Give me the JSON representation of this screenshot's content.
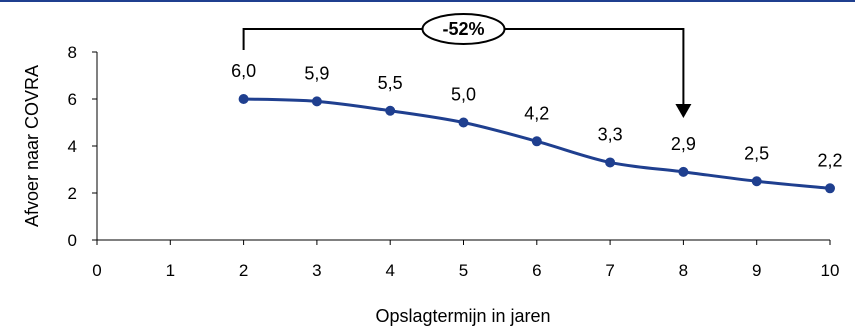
{
  "chart_data": {
    "type": "line",
    "title": "",
    "xlabel": "Opslagtermijn in jaren",
    "ylabel": "Afvoer naar COVRA",
    "x": [
      2,
      3,
      4,
      5,
      6,
      7,
      8,
      9,
      10
    ],
    "series": [
      {
        "name": "",
        "values": [
          6.0,
          5.9,
          5.5,
          5.0,
          4.2,
          3.3,
          2.9,
          2.5,
          2.2
        ],
        "data_labels": [
          "6,0",
          "5,9",
          "5,5",
          "5,0",
          "4,2",
          "3,3",
          "2,9",
          "2,5",
          "2,2"
        ],
        "color": "#1f3f8f"
      }
    ],
    "xlim": [
      0,
      10
    ],
    "ylim": [
      0,
      8
    ],
    "x_ticks": [
      "0",
      "1",
      "2",
      "3",
      "4",
      "5",
      "6",
      "7",
      "8",
      "9",
      "10"
    ],
    "y_ticks": [
      "0",
      "2",
      "4",
      "6",
      "8"
    ],
    "grid": false,
    "annotation": {
      "text": "-52%",
      "from_x": 2,
      "to_x": 8
    }
  },
  "colors": {
    "series": "#1f3f8f",
    "top_border": "#1f3f8f"
  }
}
